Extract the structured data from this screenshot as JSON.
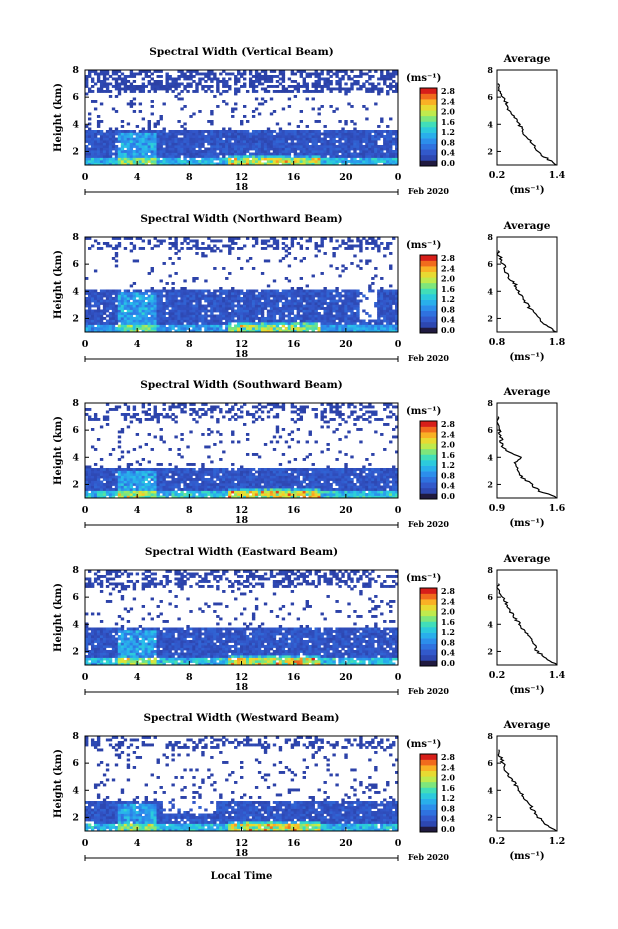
{
  "chart_data": {
    "type": "heatmap",
    "xlabel": "Local Time",
    "x_ticks": [
      "0",
      "4",
      "8",
      "12",
      "16",
      "20",
      "0"
    ],
    "date_tick": "18",
    "date_label": "Feb 2020",
    "ylabel": "Height (km)",
    "y_ticks": [
      "2",
      "4",
      "6",
      "8"
    ],
    "ylim": [
      1,
      8
    ],
    "xlim": [
      0,
      24
    ],
    "colorbar": {
      "unit_label": "(ms⁻¹)",
      "ticks": [
        "0.0",
        "0.4",
        "0.8",
        "1.2",
        "1.6",
        "2.0",
        "2.4",
        "2.8"
      ],
      "range": [
        0,
        2.8
      ]
    },
    "average_title": "Average",
    "average_xlabel": "(ms⁻¹)",
    "panels": [
      {
        "title": "Spectral Width (Vertical Beam)",
        "avg_x_ticks": [
          "0.2",
          "1.4"
        ],
        "avg_xlim": [
          0.2,
          1.4
        ],
        "avg_profile": {
          "height": [
            1.0,
            1.5,
            2.0,
            2.5,
            3.0,
            3.5,
            4.0,
            4.5,
            5.0,
            5.5,
            6.0,
            6.5,
            7.0
          ],
          "value": [
            1.4,
            1.2,
            1.0,
            0.95,
            0.8,
            0.7,
            0.65,
            0.55,
            0.45,
            0.4,
            0.3,
            0.25,
            0.2
          ]
        }
      },
      {
        "title": "Spectral Width (Northward Beam)",
        "avg_x_ticks": [
          "0.8",
          "1.8"
        ],
        "avg_xlim": [
          0.8,
          1.8
        ],
        "avg_profile": {
          "height": [
            1.0,
            1.5,
            2.0,
            2.5,
            3.0,
            3.5,
            4.0,
            4.5,
            5.0,
            5.5,
            6.0,
            6.5,
            7.0
          ],
          "value": [
            1.8,
            1.6,
            1.5,
            1.4,
            1.3,
            1.25,
            1.15,
            1.1,
            1.0,
            0.95,
            0.9,
            0.85,
            0.8
          ]
        }
      },
      {
        "title": "Spectral Width (Southward Beam)",
        "avg_x_ticks": [
          "0.9",
          "1.6"
        ],
        "avg_xlim": [
          0.9,
          1.6
        ],
        "avg_profile": {
          "height": [
            1.0,
            1.5,
            2.0,
            2.5,
            3.0,
            3.5,
            4.0,
            4.5,
            5.0,
            5.5,
            6.0,
            6.5,
            7.0
          ],
          "value": [
            1.6,
            1.4,
            1.3,
            1.2,
            1.15,
            1.1,
            1.2,
            1.0,
            0.95,
            0.95,
            0.92,
            0.9,
            0.9
          ]
        }
      },
      {
        "title": "Spectral Width (Eastward Beam)",
        "avg_x_ticks": [
          "0.2",
          "1.4"
        ],
        "avg_xlim": [
          0.2,
          1.4
        ],
        "avg_profile": {
          "height": [
            1.0,
            1.5,
            2.0,
            2.5,
            3.0,
            3.5,
            4.0,
            4.5,
            5.0,
            5.5,
            6.0,
            6.5,
            7.0
          ],
          "value": [
            1.4,
            1.2,
            1.0,
            0.95,
            0.85,
            0.75,
            0.65,
            0.55,
            0.45,
            0.4,
            0.3,
            0.25,
            0.2
          ]
        }
      },
      {
        "title": "Spectral Width (Westward Beam)",
        "avg_x_ticks": [
          "0.2",
          "1.2"
        ],
        "avg_xlim": [
          0.2,
          1.2
        ],
        "avg_profile": {
          "height": [
            1.0,
            1.5,
            2.0,
            2.5,
            3.0,
            3.5,
            4.0,
            4.5,
            5.0,
            5.5,
            6.0,
            6.5,
            7.0
          ],
          "value": [
            1.2,
            1.0,
            0.9,
            0.8,
            0.75,
            0.65,
            0.55,
            0.5,
            0.4,
            0.35,
            0.3,
            0.25,
            0.2
          ]
        }
      }
    ]
  }
}
